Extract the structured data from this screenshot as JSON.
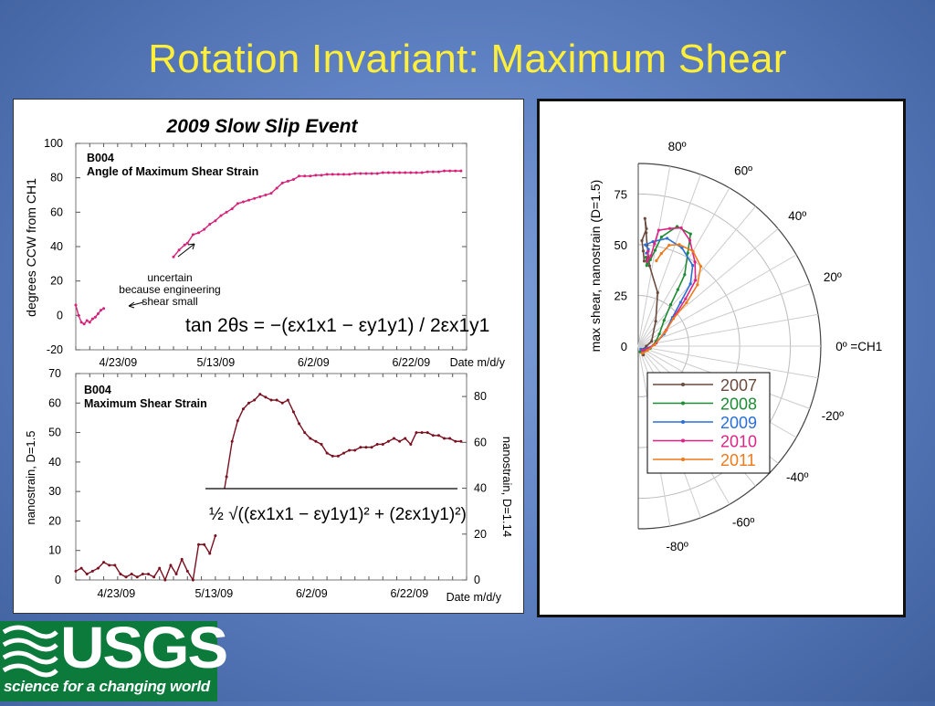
{
  "slide": {
    "title": "Rotation Invariant: Maximum Shear",
    "logo_text": "USGS",
    "logo_tagline": "science for a changing world",
    "colors": {
      "title": "#ffef3a",
      "logo_green": "#0b7a3b"
    }
  },
  "chart_data": [
    {
      "type": "line",
      "title": "2009 Slow Slip Event",
      "inner_label_station": "B004",
      "inner_label": "Angle of Maximum Shear Strain",
      "ylabel": "degrees CCW from CH1",
      "xlabel": "Date m/d/y",
      "x_ticks": [
        "4/23/09",
        "5/13/09",
        "6/2/09",
        "6/22/09"
      ],
      "y_ticks": [
        100,
        80,
        60,
        40,
        20,
        0,
        -20
      ],
      "ylim": [
        -20,
        100
      ],
      "annotation": [
        "uncertain",
        "because engineering",
        "shear small"
      ],
      "formula": "tan 2θs = −(εx1x1 − εy1y1) / 2εx1y1",
      "color": "#d4237a",
      "series": [
        {
          "x": [
            0,
            1,
            2,
            3,
            4,
            5,
            6,
            7,
            8,
            9,
            10
          ],
          "values": [
            6,
            0,
            -4,
            -5,
            -3,
            -4,
            -2,
            -1,
            1,
            3,
            4
          ]
        },
        {
          "x": [
            35,
            37,
            39,
            40,
            42,
            44,
            46,
            48,
            50,
            52,
            54,
            56,
            58,
            60,
            62,
            64,
            66,
            68,
            70,
            72,
            74,
            76,
            78,
            80,
            82,
            84,
            86,
            88,
            90,
            92,
            94,
            96,
            98,
            100,
            102,
            104,
            106,
            108,
            110,
            112,
            114,
            116,
            118,
            120,
            122,
            124,
            126,
            128,
            130,
            132,
            134,
            136,
            138
          ],
          "values": [
            34,
            38,
            41,
            42,
            47,
            48,
            50,
            53,
            55,
            58,
            60,
            62,
            65,
            66,
            67,
            68,
            69,
            70,
            71,
            74,
            77,
            78,
            79,
            81,
            81,
            81,
            81.5,
            81.5,
            82,
            82,
            82,
            82,
            82,
            82.5,
            82.5,
            82.5,
            82.5,
            82.5,
            83,
            83,
            83,
            83,
            83,
            83,
            83,
            83,
            83.5,
            83.5,
            83.5,
            84,
            84,
            84,
            84
          ]
        }
      ]
    },
    {
      "type": "line",
      "inner_label_station": "B004",
      "inner_label": "Maximum Shear Strain",
      "ylabel": "nanostrain, D=1.5",
      "ylabel_right": "nanostrain, D=1.14",
      "xlabel": "Date m/d/y",
      "x_ticks": [
        "4/23/09",
        "5/13/09",
        "6/2/09",
        "6/22/09"
      ],
      "y_ticks": [
        70,
        60,
        50,
        40,
        30,
        20,
        10,
        0
      ],
      "y_ticks_right": [
        80,
        60,
        40,
        20,
        0
      ],
      "ylim": [
        0,
        70
      ],
      "formula": "½ √((εx1x1 − εy1y1)² + (2εx1y1)²)",
      "color": "#7a1020",
      "series": [
        {
          "x": [
            0,
            2,
            4,
            6,
            8,
            10,
            12,
            14,
            16,
            18,
            20,
            22,
            24,
            26,
            28,
            30,
            32,
            34,
            36,
            38,
            40,
            42,
            44,
            46,
            48,
            50,
            52,
            54,
            56,
            58,
            60,
            62,
            64,
            66,
            68,
            70,
            72,
            74,
            76,
            78,
            80,
            82,
            84,
            86,
            88,
            90,
            92,
            94,
            96,
            98,
            100,
            102,
            104,
            106,
            108,
            110,
            112,
            114,
            116,
            118,
            120,
            122,
            124,
            126,
            128,
            130,
            132,
            134,
            136,
            138
          ],
          "values": [
            3,
            4,
            2,
            3,
            4,
            6,
            5,
            5,
            2,
            1,
            2,
            1,
            2,
            2,
            1,
            4,
            0,
            5,
            2,
            7,
            3,
            0,
            12,
            12,
            9,
            15,
            24,
            35,
            47,
            54,
            58,
            60,
            61,
            63,
            62,
            61,
            61,
            60,
            61,
            57,
            53,
            50,
            48,
            47,
            46,
            43,
            42,
            42,
            43,
            44,
            44,
            45,
            45,
            45,
            46,
            46,
            47,
            48,
            47,
            48,
            46,
            50,
            50,
            50,
            49,
            49,
            48,
            48,
            47,
            47
          ]
        }
      ]
    },
    {
      "type": "scatter",
      "subtype": "polar",
      "ylabel": "max shear, nanostrain (D=1.5)",
      "r_ticks": [
        0,
        25,
        50,
        75
      ],
      "rlim": [
        0,
        90
      ],
      "angle_ticks": [
        "80º",
        "60º",
        "40º",
        "20º",
        "0º =CH1",
        "-20º",
        "-40º",
        "-60º",
        "-80º"
      ],
      "angle_values": [
        80,
        60,
        40,
        20,
        0,
        -20,
        -40,
        -60,
        -80
      ],
      "legend_position": "bottom-center",
      "series": [
        {
          "name": "2007",
          "color": "#6b4a3e",
          "points": [
            [
              5,
              -60
            ],
            [
              3,
              -30
            ],
            [
              4,
              0
            ],
            [
              7,
              20
            ],
            [
              15,
              55
            ],
            [
              28,
              70
            ],
            [
              40,
              82
            ],
            [
              50,
              85
            ],
            [
              56,
              86
            ],
            [
              63,
              87
            ],
            [
              58,
              86
            ],
            [
              52,
              88
            ],
            [
              47,
              87
            ],
            [
              42,
              86
            ]
          ]
        },
        {
          "name": "2008",
          "color": "#1e8c34",
          "points": [
            [
              3,
              -70
            ],
            [
              4,
              -40
            ],
            [
              6,
              -10
            ],
            [
              9,
              15
            ],
            [
              12,
              30
            ],
            [
              18,
              45
            ],
            [
              26,
              52
            ],
            [
              34,
              55
            ],
            [
              42,
              57
            ],
            [
              52,
              62
            ],
            [
              61,
              65
            ],
            [
              62,
              72
            ],
            [
              55,
              78
            ],
            [
              48,
              80
            ],
            [
              43,
              82
            ],
            [
              40,
              84
            ],
            [
              44,
              85
            ]
          ]
        },
        {
          "name": "2009",
          "color": "#2a6fd6",
          "points": [
            [
              2,
              -50
            ],
            [
              4,
              -20
            ],
            [
              8,
              5
            ],
            [
              14,
              25
            ],
            [
              22,
              40
            ],
            [
              30,
              46
            ],
            [
              40,
              50
            ],
            [
              48,
              56
            ],
            [
              53,
              66
            ],
            [
              55,
              75
            ],
            [
              52,
              82
            ],
            [
              50,
              86
            ],
            [
              48,
              84
            ],
            [
              46,
              85
            ]
          ]
        },
        {
          "name": "2010",
          "color": "#de2386",
          "points": [
            [
              3,
              -45
            ],
            [
              5,
              -15
            ],
            [
              9,
              10
            ],
            [
              16,
              30
            ],
            [
              24,
              40
            ],
            [
              33,
              45
            ],
            [
              43,
              49
            ],
            [
              50,
              56
            ],
            [
              58,
              64
            ],
            [
              62,
              70
            ],
            [
              60,
              75
            ],
            [
              58,
              80
            ],
            [
              51,
              81
            ],
            [
              45,
              82
            ],
            [
              42,
              84
            ],
            [
              47,
              84
            ]
          ]
        },
        {
          "name": "2011",
          "color": "#ef7a1c",
          "points": [
            [
              4,
              -60
            ],
            [
              5,
              -25
            ],
            [
              8,
              5
            ],
            [
              15,
              28
            ],
            [
              22,
              38
            ],
            [
              32,
              42
            ],
            [
              42,
              46
            ],
            [
              50,
              52
            ],
            [
              54,
              60
            ],
            [
              54,
              68
            ],
            [
              52,
              73
            ],
            [
              47,
              76
            ],
            [
              43,
              78
            ]
          ]
        }
      ]
    }
  ]
}
